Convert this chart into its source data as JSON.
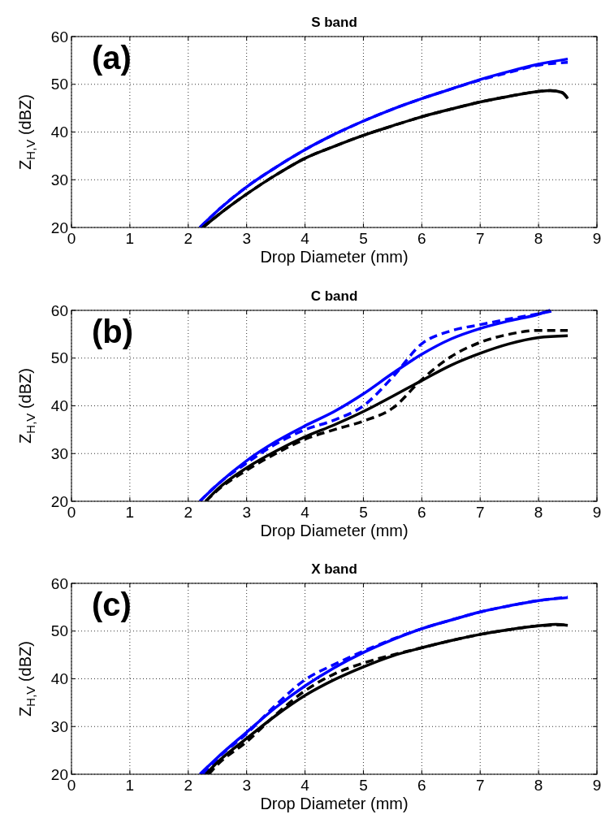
{
  "chart_data": [
    {
      "type": "line",
      "title": "S band",
      "xlabel": "Drop Diameter (mm)",
      "ylabel": "Z$_{H,V}$ (dBZ)",
      "annotations": [
        "(a)"
      ],
      "xlim": [
        0,
        9
      ],
      "xticks": [
        0,
        1,
        2,
        3,
        4,
        5,
        6,
        7,
        8,
        9
      ],
      "ylim": [
        20,
        60
      ],
      "yticks": [
        20,
        30,
        40,
        50,
        60
      ],
      "grid": true,
      "series": [
        {
          "color": "#0000ff",
          "line_style": "solid",
          "x": [
            2.2,
            2.5,
            3,
            3.5,
            4,
            4.5,
            5,
            5.5,
            6,
            6.5,
            7,
            7.5,
            8,
            8.5
          ],
          "values": [
            20,
            23.5,
            28.5,
            32.6,
            36.3,
            39.5,
            42.3,
            44.8,
            47,
            49,
            51,
            52.7,
            54.2,
            55.3
          ]
        },
        {
          "color": "#0000ff",
          "line_style": "dashed",
          "x": [
            2.2,
            2.5,
            3,
            3.5,
            4,
            4.5,
            5,
            5.5,
            6,
            6.5,
            7,
            7.5,
            8,
            8.5
          ],
          "values": [
            20,
            23.5,
            28.5,
            32.6,
            36.3,
            39.5,
            42.3,
            44.8,
            47,
            49,
            50.9,
            52.5,
            54,
            54.6
          ]
        },
        {
          "color": "#000000",
          "line_style": "solid",
          "x": [
            2.25,
            2.5,
            3,
            3.5,
            4,
            4.5,
            5,
            5.5,
            6,
            6.5,
            7,
            7.5,
            8,
            8.2,
            8.4,
            8.5
          ],
          "values": [
            20,
            22.5,
            27,
            31,
            34.5,
            37,
            39.3,
            41.3,
            43.2,
            44.8,
            46.3,
            47.5,
            48.5,
            48.7,
            48.3,
            47
          ]
        },
        {
          "color": "#000000",
          "line_style": "dashed",
          "x": [
            2.25,
            2.5,
            3,
            3.5,
            4,
            4.5,
            5,
            5.5,
            6,
            6.5,
            7,
            7.5,
            8,
            8.2,
            8.4,
            8.5
          ],
          "values": [
            20,
            22.5,
            27,
            31,
            34.5,
            37,
            39.3,
            41.3,
            43.2,
            44.8,
            46.3,
            47.5,
            48.5,
            48.7,
            48.3,
            47
          ]
        }
      ]
    },
    {
      "type": "line",
      "title": "C band",
      "xlabel": "Drop Diameter (mm)",
      "ylabel": "Z$_{H,V}$ (dBZ)",
      "annotations": [
        "(b)"
      ],
      "xlim": [
        0,
        9
      ],
      "xticks": [
        0,
        1,
        2,
        3,
        4,
        5,
        6,
        7,
        8,
        9
      ],
      "ylim": [
        20,
        60
      ],
      "yticks": [
        20,
        30,
        40,
        50,
        60
      ],
      "grid": true,
      "series": [
        {
          "color": "#0000ff",
          "line_style": "solid",
          "x": [
            2.2,
            2.5,
            3,
            3.5,
            4,
            4.5,
            5,
            5.5,
            6,
            6.5,
            7,
            7.5,
            8,
            8.2
          ],
          "values": [
            20,
            23.5,
            28.5,
            32.5,
            35.8,
            38.8,
            42.5,
            46.8,
            50.8,
            54,
            56.2,
            57.8,
            59.2,
            60
          ]
        },
        {
          "color": "#0000ff",
          "line_style": "dashed",
          "x": [
            2.2,
            2.5,
            3,
            3.5,
            4,
            4.5,
            5,
            5.5,
            6,
            6.5,
            7,
            7.5,
            8,
            8.3
          ],
          "values": [
            20,
            23.5,
            28,
            32,
            35,
            37,
            40,
            46,
            53,
            55.7,
            57,
            58.2,
            59.3,
            60
          ]
        },
        {
          "color": "#000000",
          "line_style": "solid",
          "x": [
            2.3,
            2.5,
            3,
            3.5,
            4,
            4.5,
            5,
            5.5,
            6,
            6.5,
            7,
            7.5,
            8,
            8.5
          ],
          "values": [
            20,
            22.5,
            27,
            30.5,
            33.5,
            36,
            38.8,
            42,
            45.3,
            48.5,
            51,
            53,
            54.3,
            54.7
          ]
        },
        {
          "color": "#000000",
          "line_style": "dashed",
          "x": [
            2.3,
            2.5,
            3,
            3.5,
            4,
            4.5,
            5,
            5.5,
            6,
            6.5,
            7,
            7.5,
            8,
            8.5
          ],
          "values": [
            20,
            22.3,
            26.5,
            30,
            33,
            35,
            36.8,
            39.5,
            45.5,
            50.3,
            53.3,
            55,
            55.8,
            55.8
          ]
        }
      ]
    },
    {
      "type": "line",
      "title": "X band",
      "xlabel": "Drop Diameter (mm)",
      "ylabel": "Z$_{H,V}$ (dBZ)",
      "annotations": [
        "(c)"
      ],
      "xlim": [
        0,
        9
      ],
      "xticks": [
        0,
        1,
        2,
        3,
        4,
        5,
        6,
        7,
        8,
        9
      ],
      "ylim": [
        20,
        60
      ],
      "yticks": [
        20,
        30,
        40,
        50,
        60
      ],
      "grid": true,
      "series": [
        {
          "color": "#0000ff",
          "line_style": "solid",
          "x": [
            2.2,
            2.5,
            3,
            3.5,
            4,
            4.5,
            5,
            5.5,
            6,
            6.5,
            7,
            7.5,
            8,
            8.5
          ],
          "values": [
            20,
            23.5,
            28.8,
            34,
            38.5,
            42.3,
            45.5,
            48.2,
            50.5,
            52.3,
            54,
            55.3,
            56.4,
            57
          ]
        },
        {
          "color": "#0000ff",
          "line_style": "dashed",
          "x": [
            2.25,
            2.5,
            3,
            3.5,
            4,
            4.5,
            5,
            5.5,
            6,
            6.5,
            7,
            7.5,
            8,
            8.5
          ],
          "values": [
            20,
            23.3,
            28.5,
            34.5,
            39.8,
            43,
            45.8,
            48.3,
            50.5,
            52.3,
            54,
            55.3,
            56.4,
            57.1
          ]
        },
        {
          "color": "#000000",
          "line_style": "solid",
          "x": [
            2.3,
            2.5,
            3,
            3.5,
            4,
            4.5,
            5,
            5.5,
            6,
            6.5,
            7,
            7.5,
            8,
            8.3,
            8.5
          ],
          "values": [
            20,
            22.5,
            27.5,
            32.3,
            36.5,
            39.8,
            42.5,
            44.8,
            46.5,
            48,
            49.3,
            50.3,
            51.1,
            51.4,
            51.2
          ]
        },
        {
          "color": "#000000",
          "line_style": "dashed",
          "x": [
            2.35,
            2.5,
            3,
            3.5,
            4,
            4.5,
            5,
            5.5,
            6,
            6.5,
            7,
            7.5,
            8,
            8.5
          ],
          "values": [
            20,
            22,
            26.8,
            32.5,
            37.5,
            41,
            43.3,
            45,
            46.5,
            48,
            49.3,
            50.3,
            51.1,
            51.3
          ]
        }
      ]
    }
  ]
}
